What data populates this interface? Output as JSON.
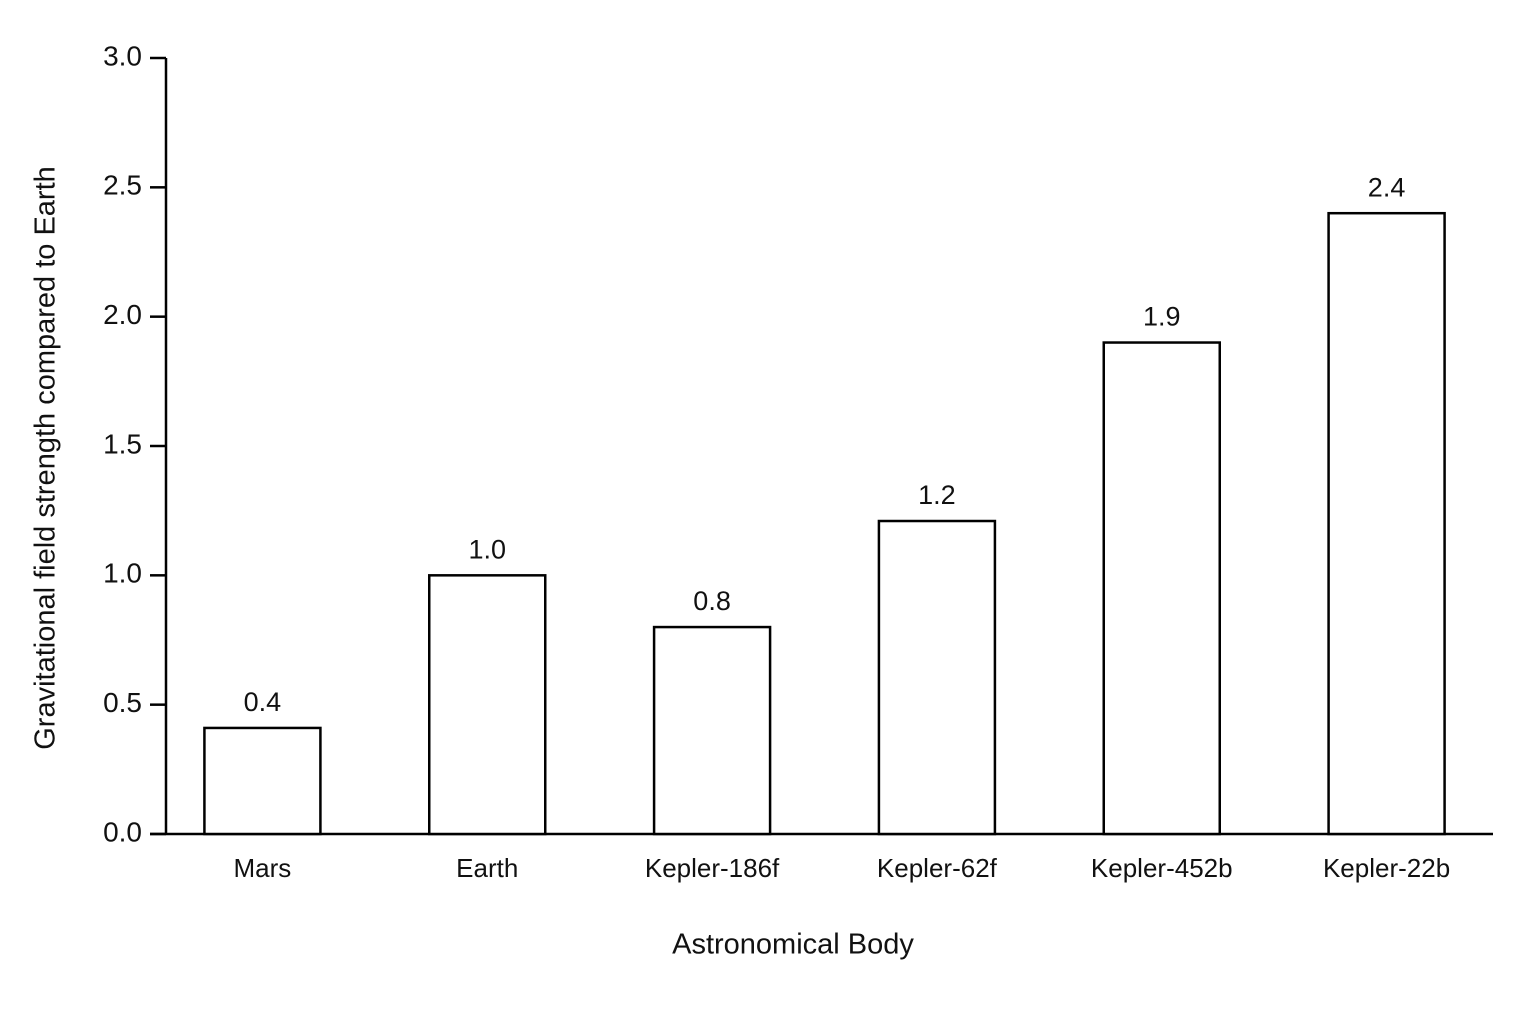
{
  "chart_data": {
    "type": "bar",
    "x_label": "Astronomical Body",
    "y_label": "Gravitational field strength compared to Earth",
    "categories": [
      "Mars",
      "Earth",
      "Kepler-186f",
      "Kepler-62f",
      "Kepler-452b",
      "Kepler-22b"
    ],
    "values": [
      0.41,
      1.0,
      0.8,
      1.21,
      1.9,
      2.4
    ],
    "value_labels": [
      "0.4",
      "1.0",
      "0.8",
      "1.2",
      "1.9",
      "2.4"
    ],
    "color": "#ffffff",
    "edgecolor": "#000000",
    "ylim": [
      0,
      3
    ],
    "yticks": [
      {
        "value": 0,
        "label": "0.0"
      },
      0.5,
      {
        "value": 1,
        "label": "1.0"
      },
      1.5,
      {
        "value": 2,
        "label": "2.0"
      },
      2.5,
      {
        "value": 3,
        "label": "3.0"
      }
    ],
    "grid": false
  }
}
